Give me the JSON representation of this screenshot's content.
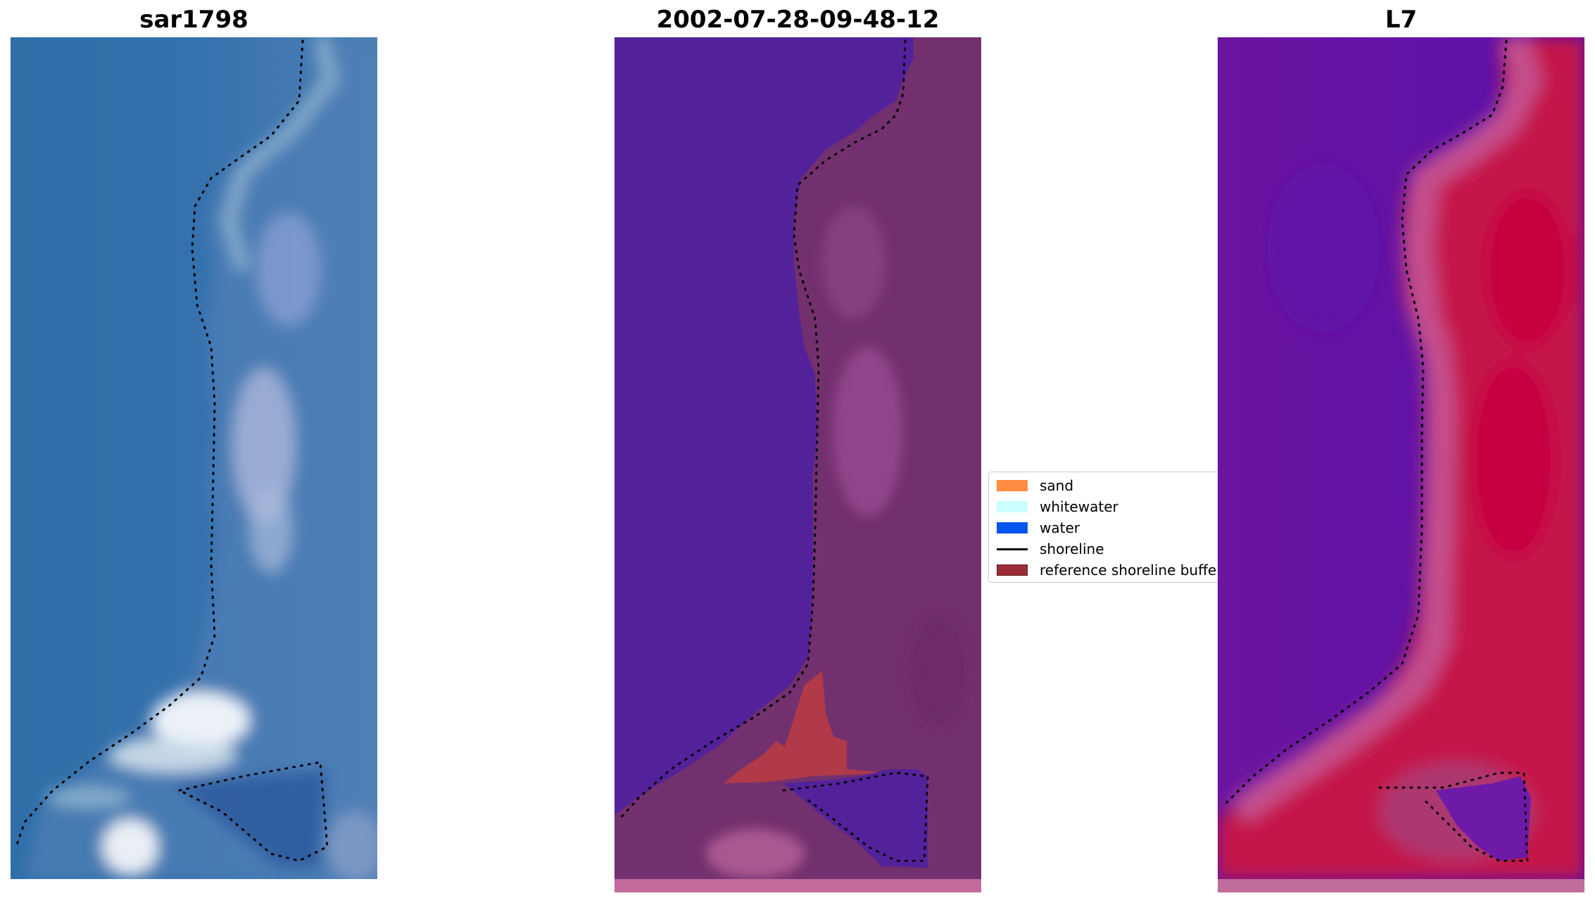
{
  "panels": [
    {
      "title": "sar1798"
    },
    {
      "title": "2002-07-28-09-48-12"
    },
    {
      "title": "L7"
    }
  ],
  "legend": {
    "items": [
      {
        "label": "sand",
        "color": "#ff8c42"
      },
      {
        "label": "whitewater",
        "color": "#ccffff"
      },
      {
        "label": "water",
        "color": "#0055ee"
      },
      {
        "label": "shoreline",
        "color": "#000000"
      },
      {
        "label": "reference shoreline buffer",
        "color": "#9b2c36"
      }
    ]
  }
}
